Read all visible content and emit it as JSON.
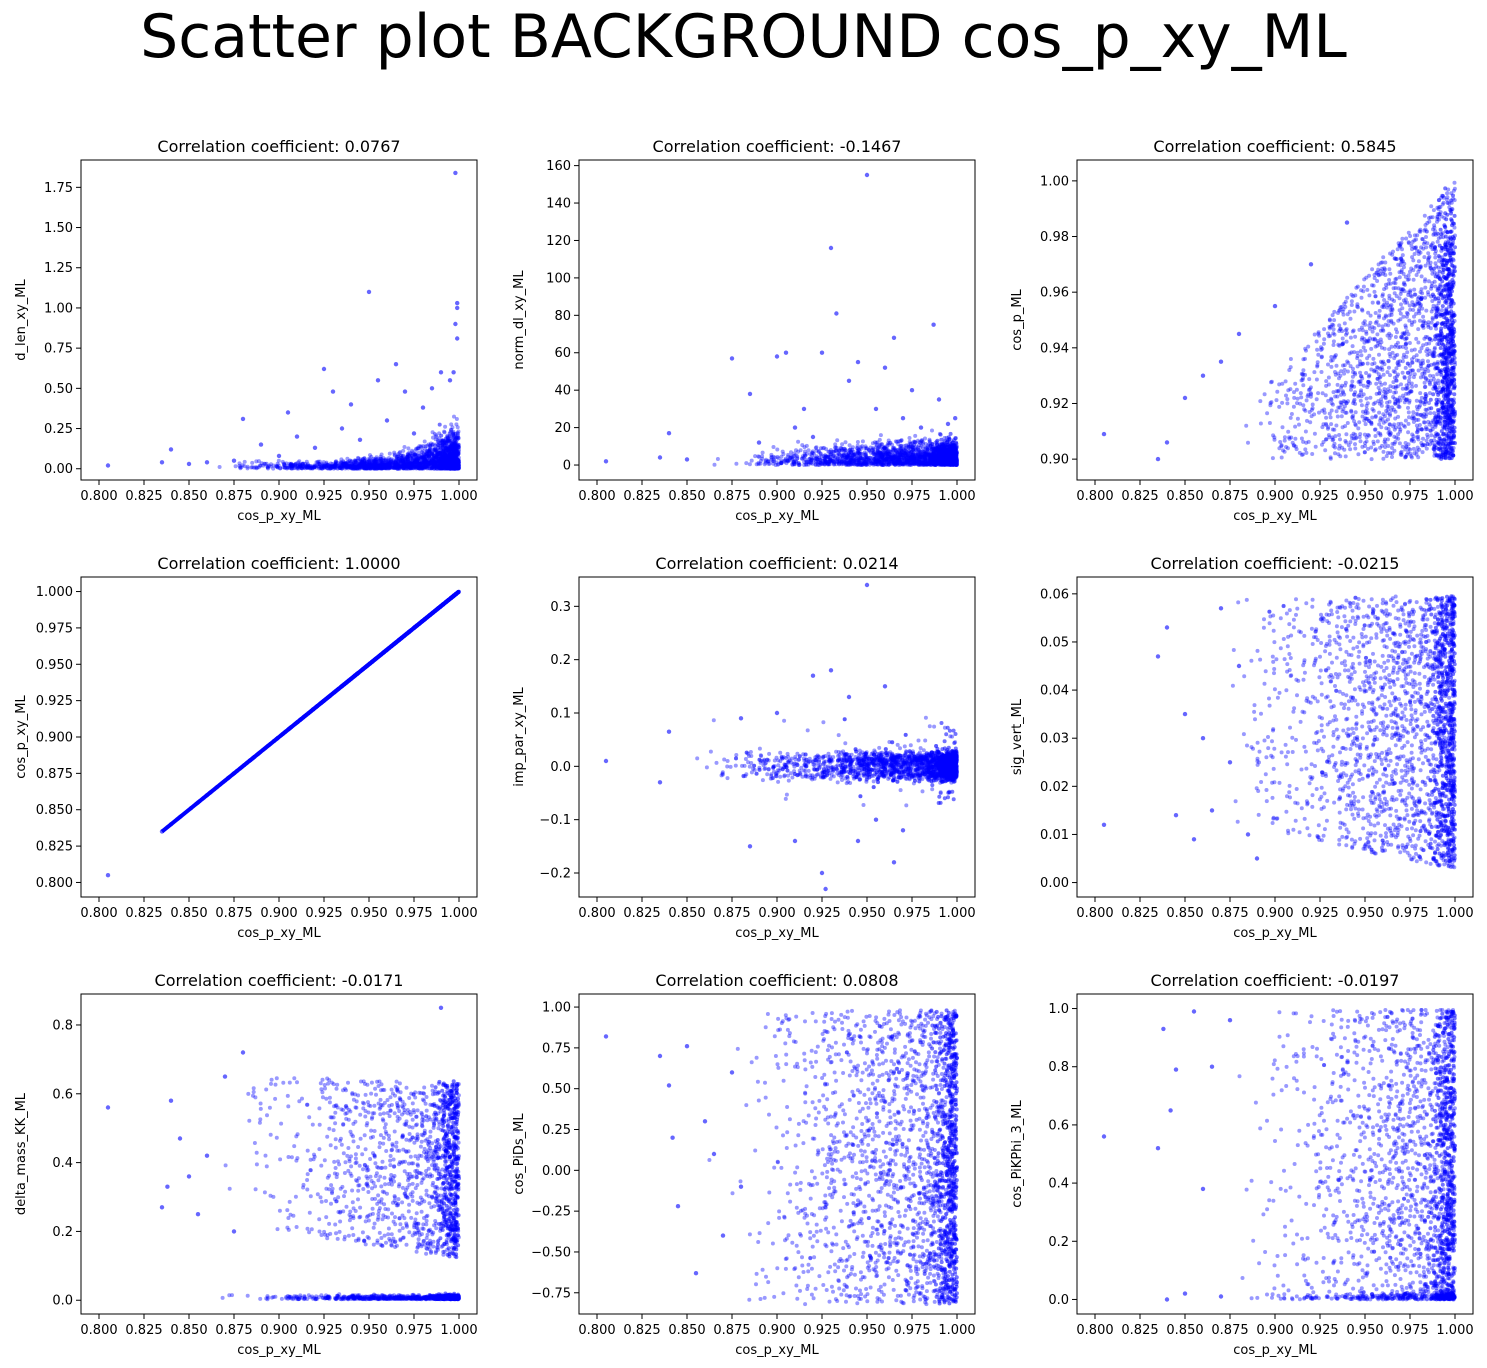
{
  "suptitle": "Scatter plot BACKGROUND cos_p_xy_ML",
  "marker_color": "#0000ff",
  "chart_data": [
    {
      "type": "scatter",
      "title": "Correlation coefficient: 0.0767",
      "xlabel": "cos_p_xy_ML",
      "ylabel": "d_len_xy_ML",
      "xlim": [
        0.79,
        1.01
      ],
      "ylim": [
        -0.07,
        1.92
      ],
      "xticks": [
        "0.800",
        "0.825",
        "0.850",
        "0.875",
        "0.900",
        "0.925",
        "0.950",
        "0.975",
        "1.000"
      ],
      "yticks": [
        "0.00",
        "0.25",
        "0.50",
        "0.75",
        "1.00",
        "1.25",
        "1.50",
        "1.75"
      ],
      "points": [
        [
          0.805,
          0.02
        ],
        [
          0.835,
          0.04
        ],
        [
          0.84,
          0.12
        ],
        [
          0.85,
          0.03
        ],
        [
          0.86,
          0.04
        ],
        [
          0.875,
          0.05
        ],
        [
          0.88,
          0.31
        ],
        [
          0.89,
          0.15
        ],
        [
          0.9,
          0.08
        ],
        [
          0.905,
          0.35
        ],
        [
          0.91,
          0.2
        ],
        [
          0.92,
          0.13
        ],
        [
          0.925,
          0.62
        ],
        [
          0.93,
          0.48
        ],
        [
          0.935,
          0.25
        ],
        [
          0.94,
          0.4
        ],
        [
          0.945,
          0.18
        ],
        [
          0.95,
          1.1
        ],
        [
          0.955,
          0.55
        ],
        [
          0.96,
          0.3
        ],
        [
          0.965,
          0.65
        ],
        [
          0.97,
          0.48
        ],
        [
          0.975,
          0.22
        ],
        [
          0.98,
          0.38
        ],
        [
          0.985,
          0.5
        ],
        [
          0.99,
          0.6
        ],
        [
          0.995,
          0.55
        ],
        [
          0.998,
          1.84
        ],
        [
          0.999,
          1.03
        ],
        [
          0.999,
          1.0
        ],
        [
          0.998,
          0.9
        ],
        [
          0.999,
          0.81
        ],
        [
          0.997,
          0.6
        ]
      ]
    },
    {
      "type": "scatter",
      "title": "Correlation coefficient: -0.1467",
      "xlabel": "cos_p_xy_ML",
      "ylabel": "norm_dl_xy_ML",
      "xlim": [
        0.79,
        1.01
      ],
      "ylim": [
        -8,
        163
      ],
      "xticks": [
        "0.800",
        "0.825",
        "0.850",
        "0.875",
        "0.900",
        "0.925",
        "0.950",
        "0.975",
        "1.000"
      ],
      "yticks": [
        "0",
        "20",
        "40",
        "60",
        "80",
        "100",
        "120",
        "140",
        "160"
      ],
      "points": [
        [
          0.805,
          2
        ],
        [
          0.835,
          4
        ],
        [
          0.84,
          17
        ],
        [
          0.85,
          3
        ],
        [
          0.875,
          57
        ],
        [
          0.885,
          38
        ],
        [
          0.89,
          12
        ],
        [
          0.9,
          58
        ],
        [
          0.905,
          60
        ],
        [
          0.91,
          20
        ],
        [
          0.915,
          30
        ],
        [
          0.92,
          15
        ],
        [
          0.925,
          60
        ],
        [
          0.93,
          116
        ],
        [
          0.933,
          81
        ],
        [
          0.94,
          45
        ],
        [
          0.945,
          55
        ],
        [
          0.95,
          155
        ],
        [
          0.955,
          30
        ],
        [
          0.96,
          52
        ],
        [
          0.965,
          68
        ],
        [
          0.97,
          25
        ],
        [
          0.975,
          40
        ],
        [
          0.98,
          20
        ],
        [
          0.987,
          75
        ],
        [
          0.99,
          35
        ],
        [
          0.995,
          22
        ],
        [
          0.999,
          25
        ]
      ]
    },
    {
      "type": "scatter",
      "title": "Correlation coefficient: 0.5845",
      "xlabel": "cos_p_xy_ML",
      "ylabel": "cos_p_ML",
      "xlim": [
        0.79,
        1.01
      ],
      "ylim": [
        0.8925,
        1.0075
      ],
      "xticks": [
        "0.800",
        "0.825",
        "0.850",
        "0.875",
        "0.900",
        "0.925",
        "0.950",
        "0.975",
        "1.000"
      ],
      "yticks": [
        "0.90",
        "0.92",
        "0.94",
        "0.96",
        "0.98",
        "1.00"
      ],
      "points": [
        [
          0.805,
          0.909
        ],
        [
          0.835,
          0.9
        ],
        [
          0.84,
          0.906
        ],
        [
          0.85,
          0.922
        ],
        [
          0.86,
          0.93
        ],
        [
          0.87,
          0.935
        ],
        [
          0.88,
          0.945
        ],
        [
          0.9,
          0.955
        ],
        [
          0.92,
          0.97
        ],
        [
          0.94,
          0.985
        ]
      ]
    },
    {
      "type": "scatter",
      "title": "Correlation coefficient: 1.0000",
      "xlabel": "cos_p_xy_ML",
      "ylabel": "cos_p_xy_ML",
      "xlim": [
        0.79,
        1.01
      ],
      "ylim": [
        0.79,
        1.01
      ],
      "xticks": [
        "0.800",
        "0.825",
        "0.850",
        "0.875",
        "0.900",
        "0.925",
        "0.950",
        "0.975",
        "1.000"
      ],
      "yticks": [
        "0.800",
        "0.825",
        "0.850",
        "0.875",
        "0.900",
        "0.925",
        "0.950",
        "0.975",
        "1.000"
      ],
      "points": [
        [
          0.805,
          0.805
        ],
        [
          0.835,
          0.835
        ],
        [
          0.84,
          0.84
        ],
        [
          0.845,
          0.845
        ],
        [
          0.855,
          0.855
        ],
        [
          0.86,
          0.86
        ]
      ]
    },
    {
      "type": "scatter",
      "title": "Correlation coefficient: 0.0214",
      "xlabel": "cos_p_xy_ML",
      "ylabel": "imp_par_xy_ML",
      "xlim": [
        0.79,
        1.01
      ],
      "ylim": [
        -0.245,
        0.355
      ],
      "xticks": [
        "0.800",
        "0.825",
        "0.850",
        "0.875",
        "0.900",
        "0.925",
        "0.950",
        "0.975",
        "1.000"
      ],
      "yticks": [
        "−0.2",
        "−0.1",
        "0.0",
        "0.1",
        "0.2",
        "0.3"
      ],
      "points": [
        [
          0.805,
          0.01
        ],
        [
          0.835,
          -0.03
        ],
        [
          0.84,
          0.065
        ],
        [
          0.88,
          0.09
        ],
        [
          0.885,
          -0.15
        ],
        [
          0.9,
          0.1
        ],
        [
          0.91,
          -0.14
        ],
        [
          0.92,
          0.17
        ],
        [
          0.925,
          -0.2
        ],
        [
          0.927,
          -0.23
        ],
        [
          0.93,
          0.18
        ],
        [
          0.94,
          0.13
        ],
        [
          0.945,
          -0.14
        ],
        [
          0.95,
          0.34
        ],
        [
          0.955,
          -0.1
        ],
        [
          0.96,
          0.15
        ],
        [
          0.965,
          -0.18
        ],
        [
          0.97,
          -0.12
        ]
      ]
    },
    {
      "type": "scatter",
      "title": "Correlation coefficient: -0.0215",
      "xlabel": "cos_p_xy_ML",
      "ylabel": "sig_vert_ML",
      "xlim": [
        0.79,
        1.01
      ],
      "ylim": [
        -0.003,
        0.0635
      ],
      "xticks": [
        "0.800",
        "0.825",
        "0.850",
        "0.875",
        "0.900",
        "0.925",
        "0.950",
        "0.975",
        "1.000"
      ],
      "yticks": [
        "0.00",
        "0.01",
        "0.02",
        "0.03",
        "0.04",
        "0.05",
        "0.06"
      ],
      "points": [
        [
          0.805,
          0.012
        ],
        [
          0.835,
          0.047
        ],
        [
          0.84,
          0.053
        ],
        [
          0.845,
          0.014
        ],
        [
          0.85,
          0.035
        ],
        [
          0.855,
          0.009
        ],
        [
          0.86,
          0.03
        ],
        [
          0.865,
          0.015
        ],
        [
          0.87,
          0.057
        ],
        [
          0.875,
          0.025
        ],
        [
          0.88,
          0.045
        ],
        [
          0.885,
          0.01
        ],
        [
          0.89,
          0.005
        ]
      ]
    },
    {
      "type": "scatter",
      "title": "Correlation coefficient: -0.0171",
      "xlabel": "cos_p_xy_ML",
      "ylabel": "delta_mass_KK_ML",
      "xlim": [
        0.79,
        1.01
      ],
      "ylim": [
        -0.04,
        0.89
      ],
      "xticks": [
        "0.800",
        "0.825",
        "0.850",
        "0.875",
        "0.900",
        "0.925",
        "0.950",
        "0.975",
        "1.000"
      ],
      "yticks": [
        "0.0",
        "0.2",
        "0.4",
        "0.6",
        "0.8"
      ],
      "points": [
        [
          0.805,
          0.56
        ],
        [
          0.835,
          0.27
        ],
        [
          0.838,
          0.33
        ],
        [
          0.84,
          0.58
        ],
        [
          0.845,
          0.47
        ],
        [
          0.85,
          0.36
        ],
        [
          0.855,
          0.25
        ],
        [
          0.86,
          0.42
        ],
        [
          0.87,
          0.65
        ],
        [
          0.875,
          0.2
        ],
        [
          0.88,
          0.72
        ],
        [
          0.99,
          0.85
        ]
      ]
    },
    {
      "type": "scatter",
      "title": "Correlation coefficient: 0.0808",
      "xlabel": "cos_p_xy_ML",
      "ylabel": "cos_PiDs_ML",
      "xlim": [
        0.79,
        1.01
      ],
      "ylim": [
        -0.88,
        1.08
      ],
      "xticks": [
        "0.800",
        "0.825",
        "0.850",
        "0.875",
        "0.900",
        "0.925",
        "0.950",
        "0.975",
        "1.000"
      ],
      "yticks": [
        "−0.75",
        "−0.50",
        "−0.25",
        "0.00",
        "0.25",
        "0.50",
        "0.75",
        "1.00"
      ],
      "points": [
        [
          0.805,
          0.82
        ],
        [
          0.835,
          0.7
        ],
        [
          0.84,
          0.52
        ],
        [
          0.842,
          0.2
        ],
        [
          0.845,
          -0.22
        ],
        [
          0.85,
          0.76
        ],
        [
          0.855,
          -0.63
        ],
        [
          0.86,
          0.3
        ],
        [
          0.865,
          0.1
        ],
        [
          0.87,
          -0.4
        ],
        [
          0.875,
          0.6
        ],
        [
          0.88,
          -0.1
        ]
      ]
    },
    {
      "type": "scatter",
      "title": "Correlation coefficient: -0.0197",
      "xlabel": "cos_p_xy_ML",
      "ylabel": "cos_PiKPhi_3_ML",
      "xlim": [
        0.79,
        1.01
      ],
      "ylim": [
        -0.05,
        1.05
      ],
      "xticks": [
        "0.800",
        "0.825",
        "0.850",
        "0.875",
        "0.900",
        "0.925",
        "0.950",
        "0.975",
        "1.000"
      ],
      "yticks": [
        "0.0",
        "0.2",
        "0.4",
        "0.6",
        "0.8",
        "1.0"
      ],
      "points": [
        [
          0.805,
          0.56
        ],
        [
          0.835,
          0.52
        ],
        [
          0.838,
          0.93
        ],
        [
          0.84,
          0.0
        ],
        [
          0.842,
          0.65
        ],
        [
          0.845,
          0.79
        ],
        [
          0.85,
          0.02
        ],
        [
          0.855,
          0.99
        ],
        [
          0.86,
          0.38
        ],
        [
          0.865,
          0.8
        ],
        [
          0.87,
          0.01
        ],
        [
          0.875,
          0.96
        ]
      ]
    }
  ]
}
